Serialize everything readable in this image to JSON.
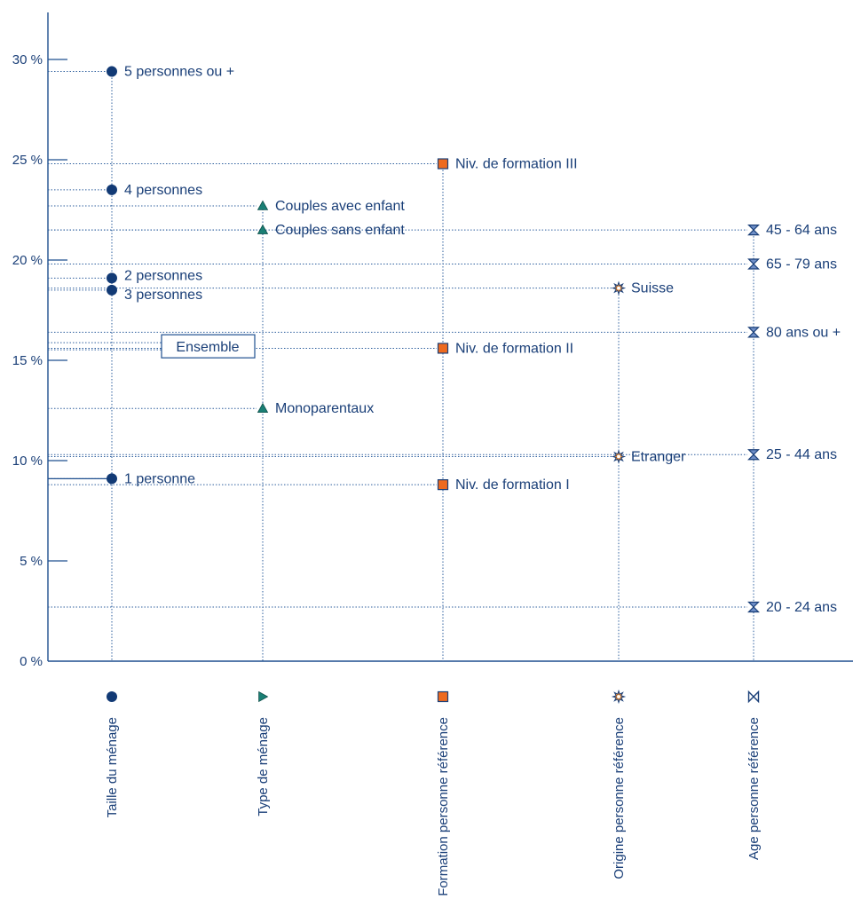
{
  "colors": {
    "axis": "#1f4f8f",
    "guide": "#2e5f9e",
    "text": "#1a3f78",
    "taille": "#123a75",
    "type": "#1a7f74",
    "formation": "#ee6a1f",
    "origine": "#f28a2a",
    "age": "#6f8fc8"
  },
  "chart_data": {
    "type": "scatter",
    "ylim": [
      0,
      30
    ],
    "y_ticks": [
      {
        "value": 0,
        "label": "0 %"
      },
      {
        "value": 5,
        "label": "5 %"
      },
      {
        "value": 10,
        "label": "10 %"
      },
      {
        "value": 15,
        "label": "15 %"
      },
      {
        "value": 20,
        "label": "20 %"
      },
      {
        "value": 25,
        "label": "25 %"
      },
      {
        "value": 30,
        "label": "30 %"
      }
    ],
    "grid": false,
    "reference": {
      "label": "Ensemble",
      "value": 15.7
    },
    "categories": [
      {
        "name": "Taille du ménage",
        "marker": "circle-icon",
        "color": "#123a75",
        "points": [
          {
            "label": "5 personnes ou +",
            "value": 29.4
          },
          {
            "label": "4 personnes",
            "value": 23.5
          },
          {
            "label": "2 personnes",
            "value": 19.1
          },
          {
            "label": "3 personnes",
            "value": 18.5
          },
          {
            "label": "1 personne",
            "value": 9.1
          }
        ]
      },
      {
        "name": "Type de ménage",
        "marker": "triangle-icon",
        "color": "#1a7f74",
        "points": [
          {
            "label": "Couples avec enfant",
            "value": 22.7
          },
          {
            "label": "Couples sans enfant",
            "value": 21.5
          },
          {
            "label": "Monoparentaux",
            "value": 12.6
          }
        ]
      },
      {
        "name": "Formation personne référence",
        "marker": "square-icon",
        "color": "#ee6a1f",
        "points": [
          {
            "label": "Niv. de formation III",
            "value": 24.8
          },
          {
            "label": "Niv. de formation II",
            "value": 15.6
          },
          {
            "label": "Niv. de formation I",
            "value": 8.8
          }
        ]
      },
      {
        "name": "Origine personne référence",
        "marker": "star-icon",
        "color": "#f28a2a",
        "points": [
          {
            "label": "Suisse",
            "value": 18.6
          },
          {
            "label": "Etranger",
            "value": 10.2
          }
        ]
      },
      {
        "name": "Age personne référence",
        "marker": "hourglass-icon",
        "color": "#6f8fc8",
        "points": [
          {
            "label": "45 - 64 ans",
            "value": 21.5
          },
          {
            "label": "65 - 79 ans",
            "value": 19.8
          },
          {
            "label": "80 ans ou +",
            "value": 16.4
          },
          {
            "label": "25 - 44 ans",
            "value": 10.3
          },
          {
            "label": "20 - 24 ans",
            "value": 2.7
          }
        ]
      }
    ]
  }
}
